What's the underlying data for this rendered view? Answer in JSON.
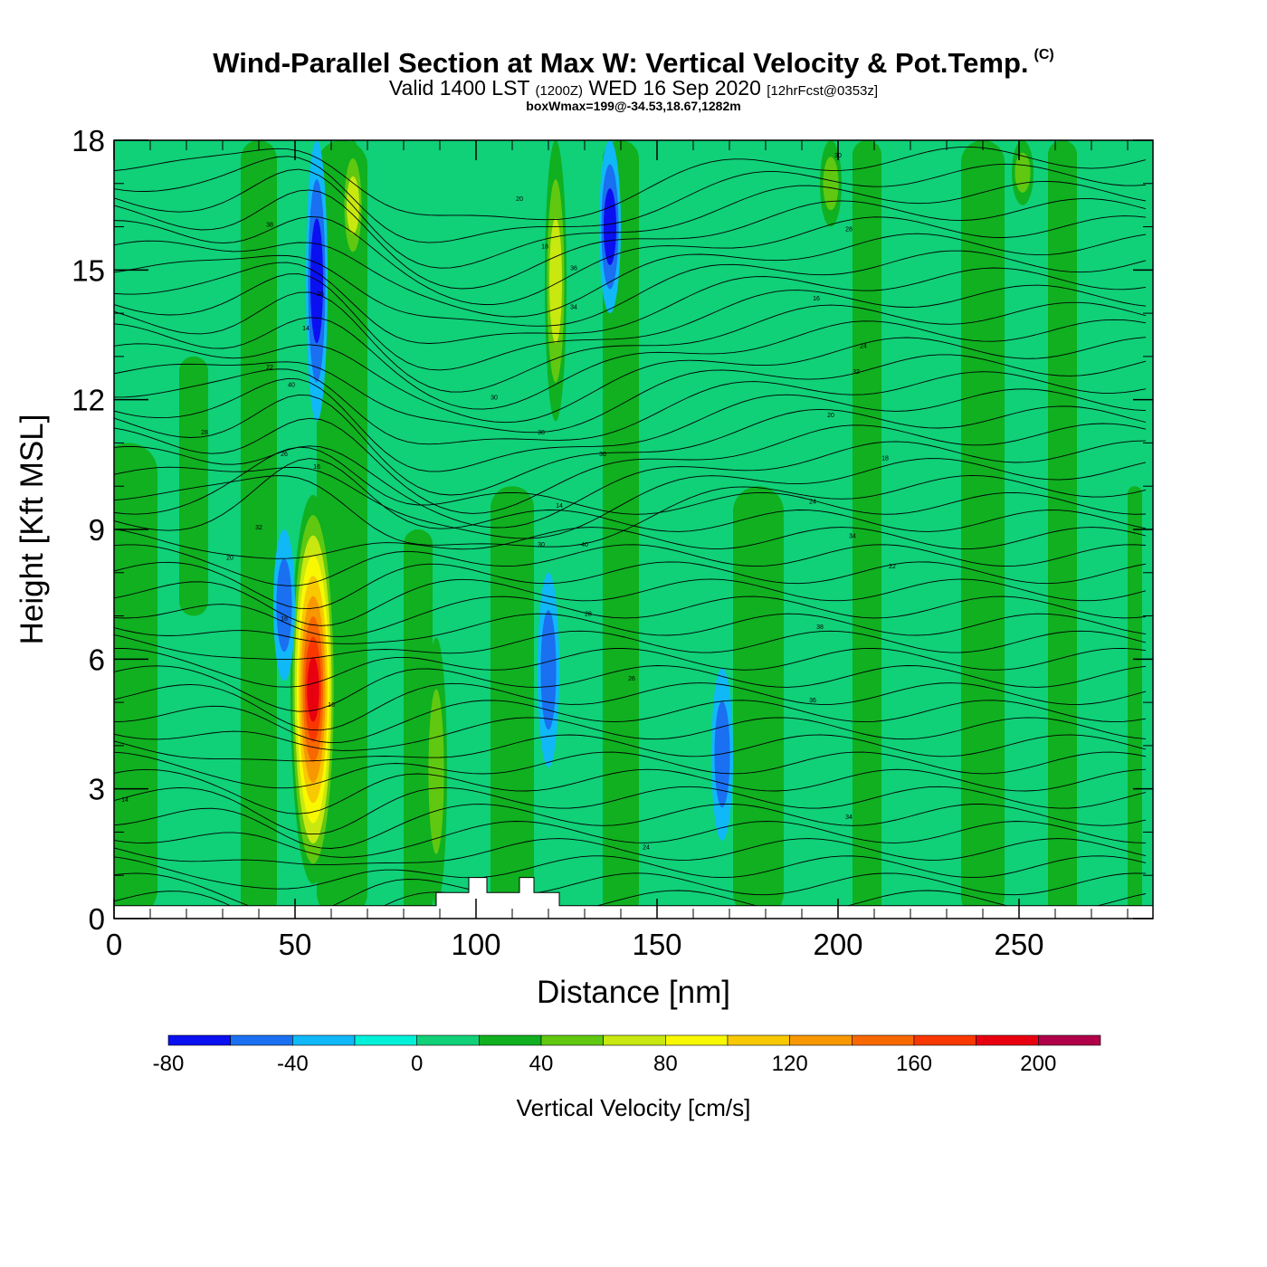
{
  "title": {
    "main": "Wind-Parallel Section at Max W: Vertical Velocity & Pot.Temp.",
    "copyright": "(C)",
    "valid_prefix": "Valid 1400 LST",
    "valid_utc": "(1200Z)",
    "valid_date": "WED 16 Sep 2020",
    "forecast": "[12hrFcst@0353z]",
    "box_wmax": "boxWmax=199@-34.53,18.67,1282m"
  },
  "chart_data": {
    "type": "heatmap",
    "description_units": "cm/s",
    "xlabel": "Distance [nm]",
    "ylabel": "Height [Kft MSL]",
    "xlim": [
      0,
      287
    ],
    "ylim": [
      0,
      18
    ],
    "x_ticks": [
      0,
      50,
      100,
      150,
      200,
      250
    ],
    "y_ticks": [
      0,
      3,
      6,
      9,
      12,
      15,
      18
    ],
    "colorbar": {
      "title": "Vertical Velocity [cm/s]",
      "min": -80,
      "max": 220,
      "step": 20,
      "tick_labels": [
        "-80",
        "-40",
        "0",
        "40",
        "80",
        "120",
        "160",
        "200"
      ],
      "tick_values": [
        -80,
        -40,
        0,
        40,
        80,
        120,
        160,
        200
      ],
      "colors": [
        "#0a10f0",
        "#1a70f0",
        "#10b8f8",
        "#00f0d8",
        "#10d078",
        "#10b020",
        "#60c810",
        "#c8e810",
        "#f8f800",
        "#f8c800",
        "#f89800",
        "#f86800",
        "#f83800",
        "#e80010",
        "#b00048"
      ]
    },
    "features": [
      {
        "name": "main updraft core",
        "x": 55,
        "y_bottom": 0.8,
        "y_top": 9.8,
        "max_w": 199
      },
      {
        "name": "downdraft left of core",
        "x": 47,
        "y_bottom": 5.5,
        "y_top": 9.0,
        "min_w": -40
      },
      {
        "name": "upper downdraft",
        "x": 56,
        "y_bottom": 11.5,
        "y_top": 18,
        "min_w": -60
      },
      {
        "name": "upper updraft",
        "x": 66,
        "y_bottom": 15,
        "y_top": 18,
        "max_w": 60
      },
      {
        "name": "upper updraft",
        "x": 122,
        "y_bottom": 11.5,
        "y_top": 18,
        "max_w": 60
      },
      {
        "name": "upper downdraft",
        "x": 137,
        "y_bottom": 14,
        "y_top": 18,
        "min_w": -60
      },
      {
        "name": "lower downdraft",
        "x": 120,
        "y_bottom": 3.5,
        "y_top": 8.0,
        "min_w": -40
      },
      {
        "name": "lower downdraft",
        "x": 168,
        "y_bottom": 1.8,
        "y_top": 5.8,
        "min_w": -40
      },
      {
        "name": "updraft",
        "x": 89,
        "y_bottom": 0.3,
        "y_top": 6.5,
        "max_w": 40
      },
      {
        "name": "upper updraft",
        "x": 198,
        "y_bottom": 16,
        "y_top": 18,
        "max_w": 40
      },
      {
        "name": "upper updraft",
        "x": 251,
        "y_bottom": 16.5,
        "y_top": 18,
        "max_w": 40
      }
    ],
    "theta_contour_labels": [
      "14",
      "16",
      "18",
      "20",
      "22",
      "24",
      "26",
      "28",
      "30",
      "32",
      "34",
      "36",
      "38",
      "40"
    ],
    "terrain_nm_kft": [
      [
        0,
        0.3
      ],
      [
        89,
        0.3
      ],
      [
        89,
        0.6
      ],
      [
        98,
        0.6
      ],
      [
        98,
        0.95
      ],
      [
        103,
        0.95
      ],
      [
        103,
        0.6
      ],
      [
        112,
        0.6
      ],
      [
        112,
        0.95
      ],
      [
        116,
        0.95
      ],
      [
        116,
        0.6
      ],
      [
        123,
        0.6
      ],
      [
        123,
        0.3
      ],
      [
        287,
        0.3
      ]
    ]
  }
}
